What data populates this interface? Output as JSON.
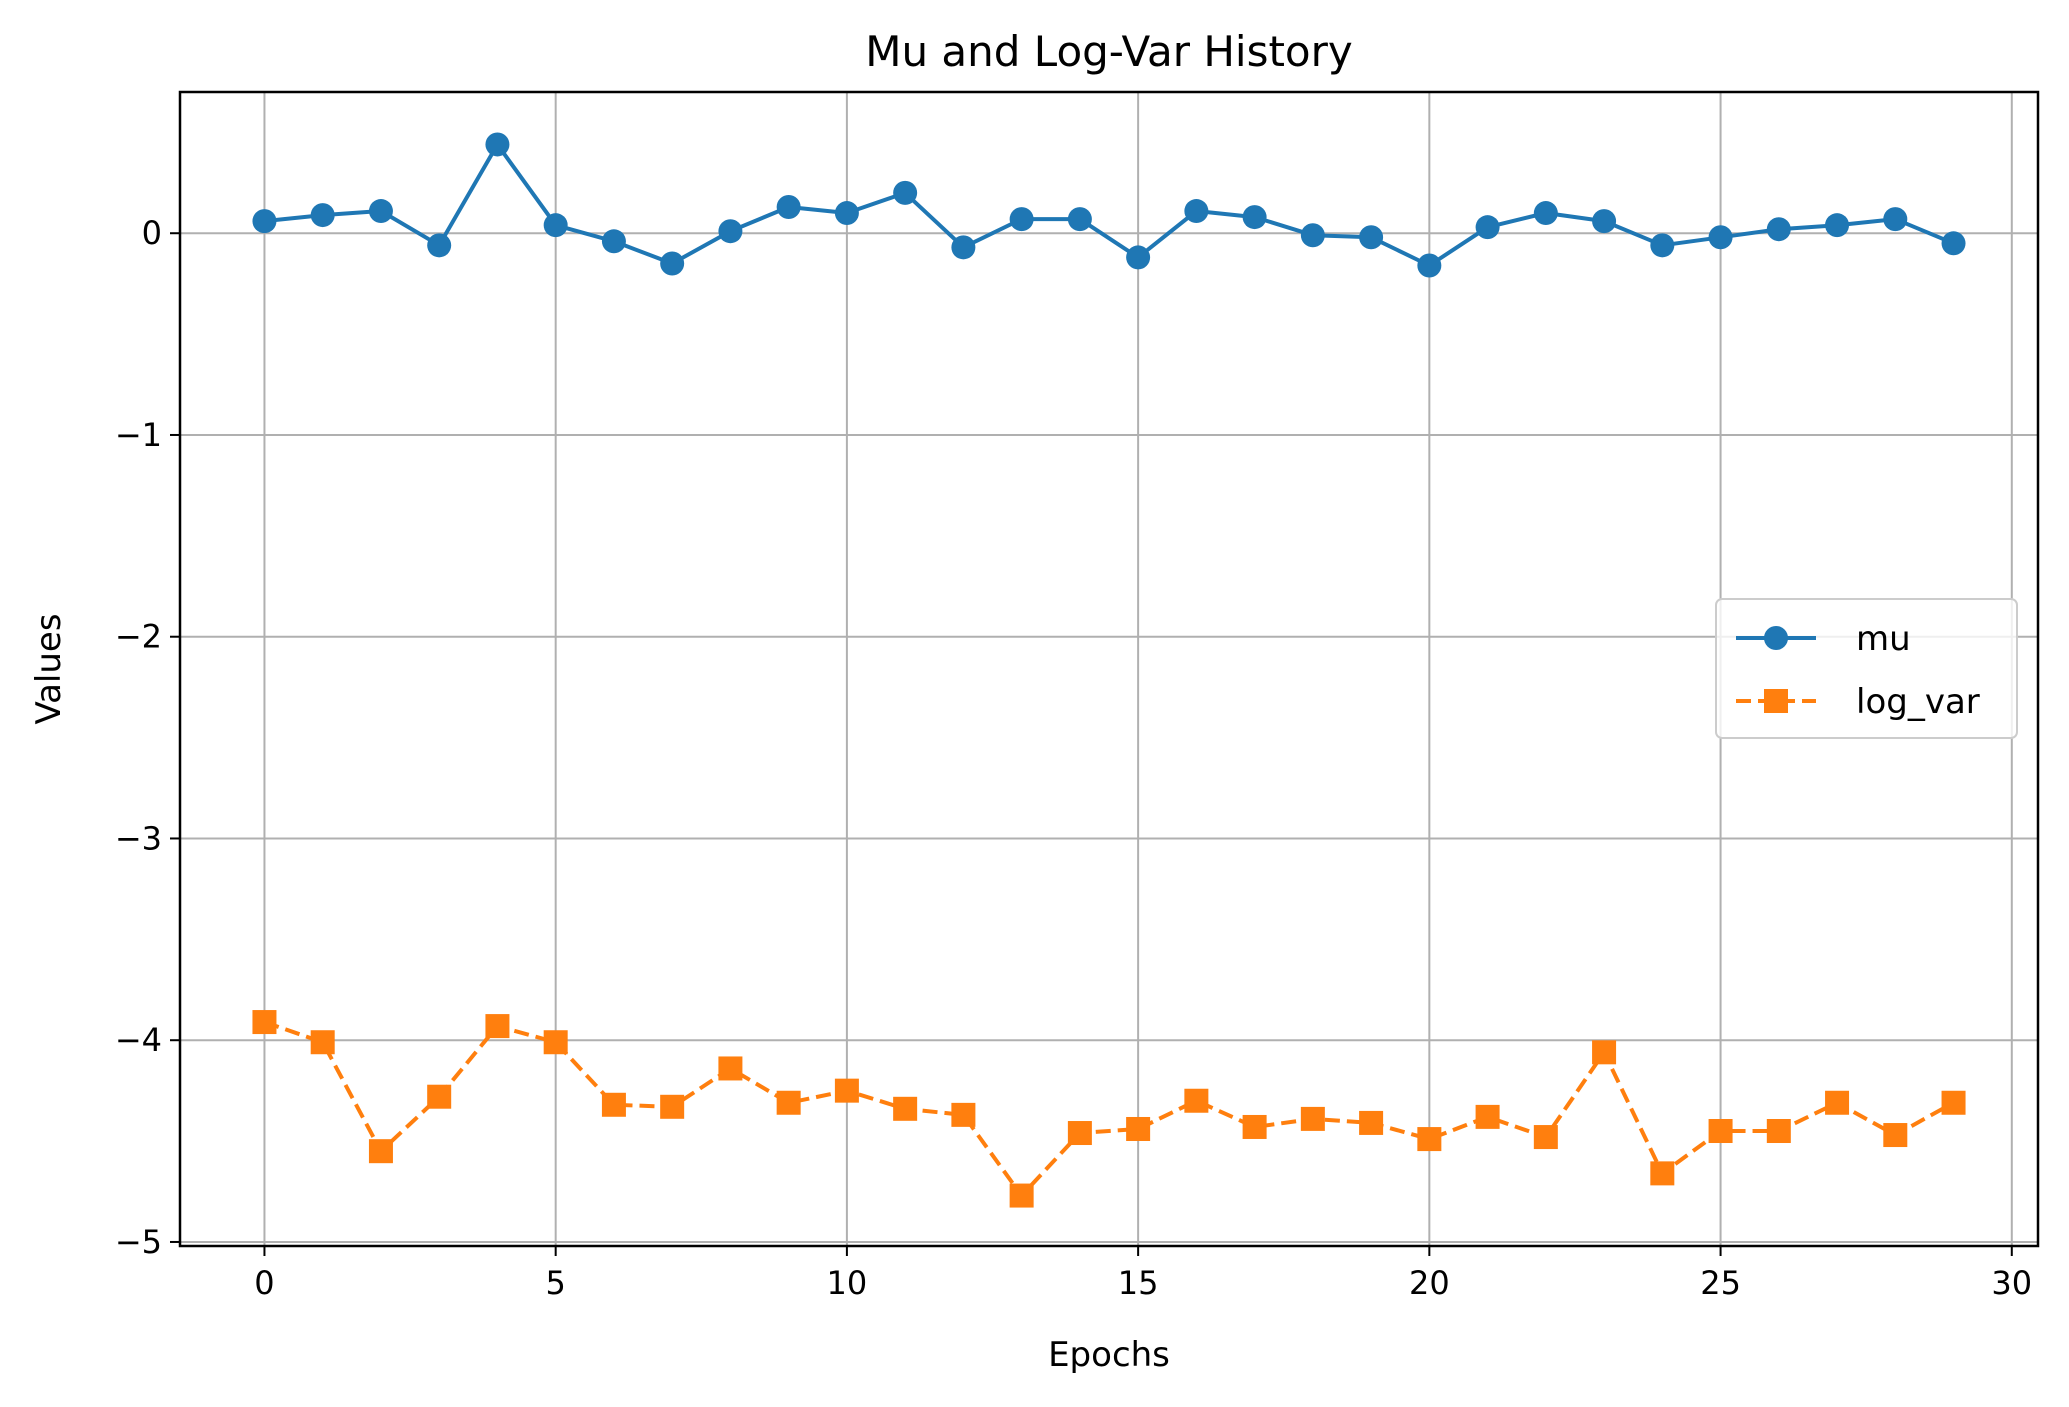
{
  "chart_data": {
    "type": "line",
    "title": "Mu and Log-Var History",
    "xlabel": "Epochs",
    "ylabel": "Values",
    "xlim": [
      -1.45,
      30.45
    ],
    "ylim": [
      -5.02,
      0.7
    ],
    "xticks": [
      0,
      5,
      10,
      15,
      20,
      25,
      30
    ],
    "xtick_labels": [
      "0",
      "5",
      "10",
      "15",
      "20",
      "25",
      "30"
    ],
    "yticks": [
      0,
      -1,
      -2,
      -3,
      -4,
      -5
    ],
    "ytick_labels": [
      "0",
      "−1",
      "−2",
      "−3",
      "−4",
      "−5"
    ],
    "grid": true,
    "legend_position": "center-right",
    "x": [
      0,
      1,
      2,
      3,
      4,
      5,
      6,
      7,
      8,
      9,
      10,
      11,
      12,
      13,
      14,
      15,
      16,
      17,
      18,
      19,
      20,
      21,
      22,
      23,
      24,
      25,
      26,
      27,
      28,
      29
    ],
    "series": [
      {
        "name": "mu",
        "color": "#1f77b4",
        "marker": "circle",
        "linestyle": "solid",
        "values": [
          0.06,
          0.09,
          0.11,
          -0.06,
          0.44,
          0.04,
          -0.04,
          -0.15,
          0.01,
          0.13,
          0.1,
          0.2,
          -0.07,
          0.07,
          0.07,
          -0.12,
          0.11,
          0.08,
          -0.01,
          -0.02,
          -0.16,
          0.03,
          0.1,
          0.06,
          -0.06,
          -0.02,
          0.02,
          0.04,
          0.07,
          -0.05
        ]
      },
      {
        "name": "log_var",
        "color": "#ff7f0e",
        "marker": "square",
        "linestyle": "dashed",
        "values": [
          -3.91,
          -4.01,
          -4.55,
          -4.28,
          -3.93,
          -4.01,
          -4.32,
          -4.33,
          -4.14,
          -4.31,
          -4.25,
          -4.34,
          -4.37,
          -4.77,
          -4.46,
          -4.44,
          -4.3,
          -4.43,
          -4.39,
          -4.41,
          -4.49,
          -4.38,
          -4.48,
          -4.06,
          -4.66,
          -4.45,
          -4.45,
          -4.31,
          -4.47,
          -4.31
        ]
      }
    ]
  }
}
